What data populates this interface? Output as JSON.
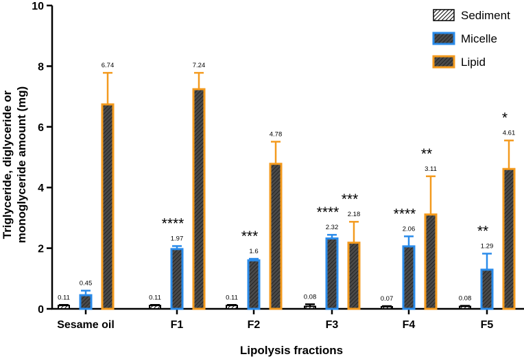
{
  "chart_data": {
    "type": "bar",
    "title": "",
    "xlabel": "Lipolysis fractions",
    "ylabel": "Triglyceride, diglyceride or monoglyceride amount (mg)",
    "ylim": [
      0,
      10
    ],
    "yticks": [
      0,
      2,
      4,
      6,
      8,
      10
    ],
    "grid": false,
    "legend_position": "top-right",
    "categories": [
      "Sesame oil",
      "F1",
      "F2",
      "F3",
      "F4",
      "F5"
    ],
    "series": [
      {
        "name": "Sediment",
        "color": "#000000",
        "fill_color": "#ffffff",
        "values": [
          0.11,
          0.11,
          0.11,
          0.08,
          0.07,
          0.08
        ],
        "errors": [
          0.02,
          0.02,
          0.02,
          0.07,
          0.02,
          0.02
        ],
        "labels": [
          "0.11",
          "0.11",
          "0.11",
          "0.08",
          "0.07",
          "0.08"
        ],
        "significance": [
          "",
          "",
          "",
          "",
          "",
          ""
        ]
      },
      {
        "name": "Micelle",
        "color": "#2a8bea",
        "fill_color": "#3a3a3a",
        "values": [
          0.45,
          1.97,
          1.6,
          2.32,
          2.06,
          1.29
        ],
        "errors": [
          0.15,
          0.1,
          0.05,
          0.12,
          0.33,
          0.53
        ],
        "labels": [
          "0.45",
          "1.97",
          "1.6",
          "2.32",
          "2.06",
          "1.29"
        ],
        "significance": [
          "",
          "****",
          "***",
          "****",
          "****",
          "**"
        ]
      },
      {
        "name": "Lipid",
        "color": "#f39a1e",
        "fill_color": "#3a3a3a",
        "values": [
          6.74,
          7.24,
          4.78,
          2.18,
          3.11,
          4.61
        ],
        "errors": [
          1.04,
          0.54,
          0.73,
          0.69,
          1.26,
          0.94
        ],
        "labels": [
          "6.74",
          "7.24",
          "4.78",
          "2.18",
          "3.11",
          "4.61"
        ],
        "significance": [
          "",
          "",
          "",
          "***",
          "**",
          "*"
        ]
      }
    ]
  }
}
